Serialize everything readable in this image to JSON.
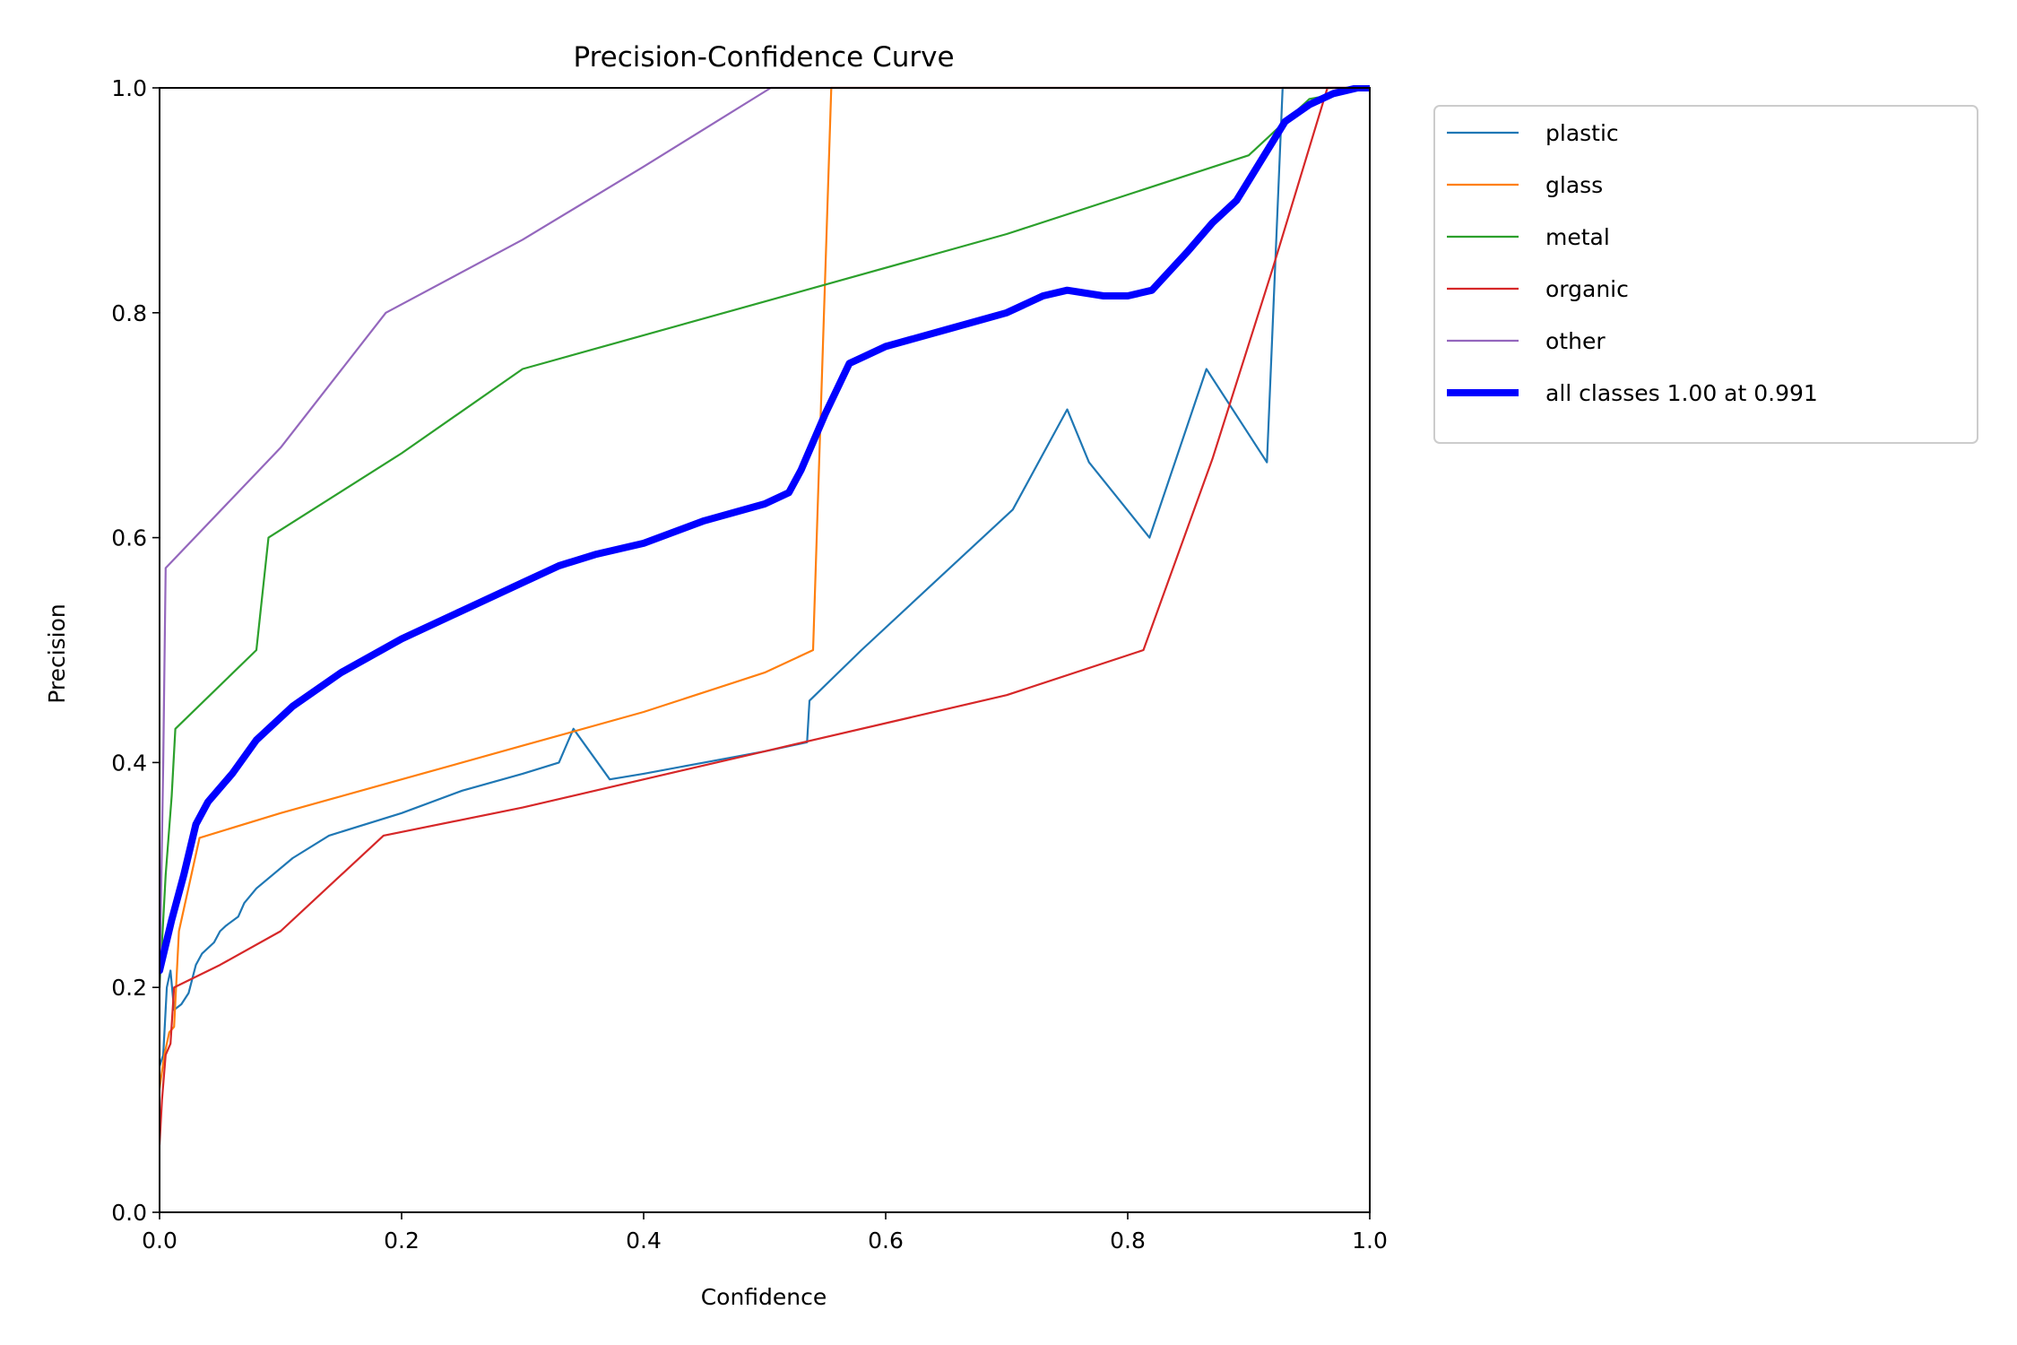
{
  "chart_data": {
    "type": "line",
    "title": "Precision-Confidence Curve",
    "xlabel": "Confidence",
    "ylabel": "Precision",
    "xlim": [
      0,
      1
    ],
    "ylim": [
      0,
      1
    ],
    "xticks": [
      "0.0",
      "0.2",
      "0.4",
      "0.6",
      "0.8",
      "1.0"
    ],
    "yticks": [
      "0.0",
      "0.2",
      "0.4",
      "0.6",
      "0.8",
      "1.0"
    ],
    "grid": false,
    "legend_position": "outside upper right",
    "series": [
      {
        "name": "plastic",
        "color": "#1f77b4",
        "x": [
          0.0,
          0.003,
          0.006,
          0.009,
          0.012,
          0.018,
          0.024,
          0.03,
          0.035,
          0.045,
          0.05,
          0.055,
          0.065,
          0.07,
          0.08,
          0.11,
          0.14,
          0.2,
          0.25,
          0.3,
          0.33,
          0.342,
          0.372,
          0.4,
          0.45,
          0.5,
          0.535,
          0.537,
          0.58,
          0.65,
          0.705,
          0.75,
          0.768,
          0.818,
          0.865,
          0.915,
          0.928,
          0.93,
          0.95,
          1.0
        ],
        "y": [
          0.13,
          0.14,
          0.2,
          0.215,
          0.18,
          0.185,
          0.195,
          0.22,
          0.23,
          0.24,
          0.25,
          0.255,
          0.263,
          0.275,
          0.288,
          0.315,
          0.335,
          0.355,
          0.375,
          0.39,
          0.4,
          0.43,
          0.385,
          0.39,
          0.4,
          0.41,
          0.418,
          0.455,
          0.5,
          0.57,
          0.625,
          0.714,
          0.667,
          0.6,
          0.75,
          0.667,
          1.0,
          1.0,
          1.0,
          1.0
        ]
      },
      {
        "name": "glass",
        "color": "#ff7f0e",
        "x": [
          0.0,
          0.004,
          0.008,
          0.012,
          0.016,
          0.033,
          0.1,
          0.2,
          0.3,
          0.4,
          0.5,
          0.54,
          0.555,
          0.6,
          0.8,
          1.0
        ],
        "y": [
          0.11,
          0.14,
          0.16,
          0.165,
          0.25,
          0.333,
          0.355,
          0.385,
          0.415,
          0.445,
          0.48,
          0.5,
          1.0,
          1.0,
          1.0,
          1.0
        ]
      },
      {
        "name": "metal",
        "color": "#2ca02c",
        "x": [
          0.0,
          0.005,
          0.01,
          0.013,
          0.08,
          0.09,
          0.2,
          0.3,
          0.5,
          0.7,
          0.9,
          0.95,
          1.0
        ],
        "y": [
          0.2,
          0.3,
          0.37,
          0.43,
          0.5,
          0.6,
          0.675,
          0.75,
          0.81,
          0.87,
          0.94,
          0.99,
          1.0
        ]
      },
      {
        "name": "organic",
        "color": "#d62728",
        "x": [
          0.0,
          0.002,
          0.005,
          0.009,
          0.012,
          0.05,
          0.1,
          0.185,
          0.3,
          0.5,
          0.7,
          0.813,
          0.87,
          0.92,
          0.965,
          1.0
        ],
        "y": [
          0.06,
          0.1,
          0.14,
          0.15,
          0.2,
          0.22,
          0.25,
          0.335,
          0.36,
          0.41,
          0.46,
          0.5,
          0.67,
          0.84,
          1.0,
          1.0
        ]
      },
      {
        "name": "other",
        "color": "#9467bd",
        "x": [
          0.0,
          0.003,
          0.005,
          0.1,
          0.187,
          0.3,
          0.4,
          0.505,
          0.6,
          0.8,
          1.0
        ],
        "y": [
          0.2,
          0.4,
          0.573,
          0.68,
          0.8,
          0.865,
          0.93,
          1.0,
          1.0,
          1.0,
          1.0
        ]
      },
      {
        "name": "all classes 1.00 at 0.991",
        "color": "#0000ff",
        "bold": true,
        "x": [
          0.0,
          0.01,
          0.02,
          0.03,
          0.04,
          0.06,
          0.08,
          0.11,
          0.15,
          0.2,
          0.25,
          0.3,
          0.33,
          0.36,
          0.38,
          0.4,
          0.45,
          0.5,
          0.52,
          0.53,
          0.55,
          0.57,
          0.58,
          0.6,
          0.65,
          0.7,
          0.73,
          0.75,
          0.78,
          0.8,
          0.82,
          0.85,
          0.87,
          0.89,
          0.91,
          0.93,
          0.95,
          0.97,
          0.99,
          1.0
        ],
        "y": [
          0.215,
          0.26,
          0.3,
          0.345,
          0.365,
          0.39,
          0.42,
          0.45,
          0.48,
          0.51,
          0.535,
          0.56,
          0.575,
          0.585,
          0.59,
          0.595,
          0.615,
          0.63,
          0.64,
          0.66,
          0.71,
          0.755,
          0.76,
          0.77,
          0.785,
          0.8,
          0.815,
          0.82,
          0.815,
          0.815,
          0.82,
          0.855,
          0.88,
          0.9,
          0.935,
          0.97,
          0.985,
          0.995,
          1.0,
          1.0
        ]
      }
    ]
  }
}
